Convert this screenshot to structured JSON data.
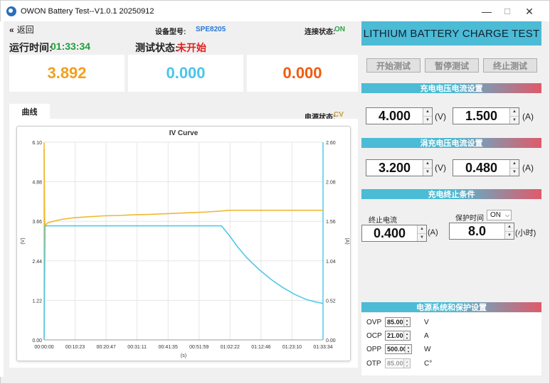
{
  "window": {
    "title": "OWON Battery Test--V1.0.1 20250912",
    "minimize": "—",
    "maximize": "☐",
    "close": "✕"
  },
  "header": {
    "back_label": "返回",
    "back_icon": "«",
    "device_model_label": "设备型号:",
    "device_model": "SPE8205",
    "conn_label": "连接状态:",
    "conn_status": "ON",
    "runtime_label": "运行时间:",
    "runtime": "01:33:34",
    "test_status_label": "测试状态:",
    "test_status": "未开始"
  },
  "readouts": {
    "voltage": "3.892",
    "current": "0.000",
    "power": "0.000"
  },
  "colors": {
    "voltage": "#f0a020",
    "current": "#4cc4e8",
    "power": "#f05a10",
    "accent": "#4cbbd5",
    "accent2": "#e05a6a"
  },
  "tab_label": "曲线",
  "power_state_label": "电源状态:",
  "power_state": "CV",
  "chart_data": {
    "type": "line",
    "title": "IV Curve",
    "xlabel": "(s)",
    "ylabel_left": "(V)",
    "ylabel_right": "(A)",
    "x_ticks": [
      "00:00:00",
      "00:10:23",
      "00:20:47",
      "00:31:11",
      "00:41:35",
      "00:51:59",
      "01:02:22",
      "01:12:46",
      "01:23:10",
      "01:33:34"
    ],
    "y_left_ticks": [
      "0.00",
      "1.22",
      "2.44",
      "3.66",
      "4.88",
      "6.10"
    ],
    "y_right_ticks": [
      "0.00",
      "0.52",
      "1.04",
      "1.56",
      "2.08",
      "2.60"
    ],
    "ylim_left": [
      0,
      6.1
    ],
    "ylim_right": [
      0,
      2.6
    ],
    "xlim": [
      0,
      93.57
    ],
    "grid": true,
    "series": [
      {
        "axis": "left",
        "color": "#f0b830",
        "x": [
          0,
          0.2,
          0.4,
          1,
          3,
          6,
          10,
          15,
          20,
          25,
          30,
          35,
          40,
          45,
          50,
          55,
          60,
          62,
          65,
          70,
          80,
          93.57
        ],
        "y": [
          5.9,
          3.66,
          3.52,
          3.6,
          3.66,
          3.72,
          3.77,
          3.8,
          3.83,
          3.84,
          3.86,
          3.87,
          3.89,
          3.91,
          3.93,
          3.95,
          3.98,
          4.0,
          4.0,
          4.0,
          4.0,
          4.0
        ]
      },
      {
        "axis": "right",
        "color": "#50c8e8",
        "x": [
          0,
          0.3,
          1,
          10,
          20,
          30,
          40,
          50,
          59.5,
          62,
          65,
          68,
          72,
          76,
          80,
          84,
          88,
          91,
          93.57
        ],
        "y": [
          0.0,
          1.5,
          1.5,
          1.5,
          1.5,
          1.5,
          1.5,
          1.5,
          1.5,
          1.38,
          1.22,
          1.08,
          0.93,
          0.8,
          0.69,
          0.6,
          0.53,
          0.5,
          0.48
        ]
      }
    ]
  },
  "right": {
    "banner": "LITHIUM BATTERY CHARGE TEST",
    "buttons": {
      "start": "开始测试",
      "pause": "暂停测试",
      "stop": "终止测试"
    },
    "charge_section": "充电电压电流设置",
    "charge_voltage": "4.000",
    "charge_current": "1.500",
    "trickle_section": "涓充电压电流设置",
    "trickle_voltage": "3.200",
    "trickle_current": "0.480",
    "unit_v": "(V)",
    "unit_a": "(A)",
    "end_section": "充电终止条件",
    "end_current_label": "终止电流",
    "end_current": "0.400",
    "protect_time_label": "保护时间",
    "protect_time_toggle": "ON",
    "protect_time": "8.0",
    "unit_hours": "(小时)",
    "protect_section": "电源系统和保护设置",
    "ovp_label": "OVP",
    "ovp": "85.00",
    "ovp_unit": "V",
    "ocp_label": "OCP",
    "ocp": "21.000",
    "ocp_unit": "A",
    "opp_label": "OPP",
    "opp": "500.000",
    "opp_unit": "W",
    "otp_label": "OTP",
    "otp": "85.000",
    "otp_unit": "C°"
  }
}
